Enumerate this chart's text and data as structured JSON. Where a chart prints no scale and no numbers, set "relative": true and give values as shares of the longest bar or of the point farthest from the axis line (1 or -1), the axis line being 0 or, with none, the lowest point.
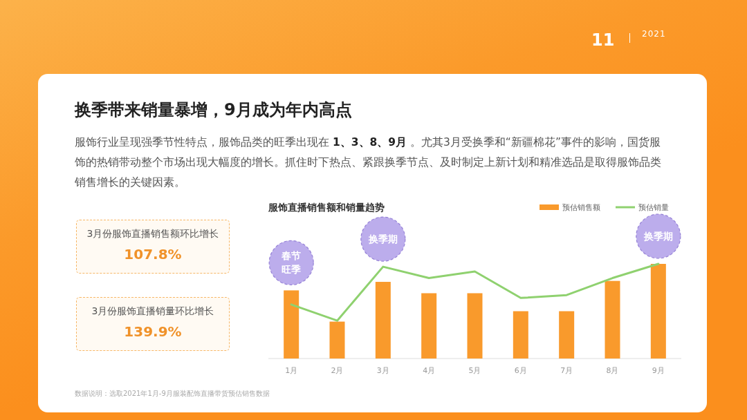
{
  "chart_data": [
    {
      "type": "other",
      "title": "换季带来销量暴增，9月成为年内高点",
      "subtitle": "服饰行业呈现强季节性特点，服饰品类的旺季出现在 **1、3、8、9月** 。尤其3月受换季和“新疆棉花”事件的影响，国货服饰的热销带动整个市场出现大幅度的增长。抓住时下热点、紧跟换季节点、及时制定上新计划和精准选品是取得服饰品类销售增长的关键因素。",
      "annotations": [
        "11",
        "2021",
        "3月份服饰直播销售额环比增长",
        "107.8%",
        "3月份服饰直播销量环比增长",
        "139.9%"
      ]
    },
    {
      "type": "bar",
      "title": "服饰直播销售额和销量趋势",
      "categories": [
        "1月",
        "2月",
        "3月",
        "4月",
        "5月",
        "6月",
        "7月",
        "8月",
        "9月"
      ],
      "relative": true,
      "legend": "top right",
      "series": [
        {
          "name": "预估销售额",
          "color": "#f99a2c",
          "values": [
            0.72,
            0.39,
            0.81,
            0.69,
            0.69,
            0.5,
            0.5,
            0.82,
            1
          ]
        },
        {
          "name": "预估销量",
          "type": "line",
          "color": "#8fd16f",
          "values": [
            0.57,
            0.4,
            0.97,
            0.85,
            0.92,
            0.64,
            0.67,
            0.85,
            1
          ]
        }
      ],
      "annotations": [
        {
          "text": "春节旺季",
          "x": "1月",
          "y": 0.72
        },
        {
          "text": "换季期",
          "x": "3月",
          "y": 0.97
        },
        {
          "text": "换季期",
          "x": "9月",
          "y": 1
        },
        "数据说明：选取2021年1月-9月服装配饰直播带货预估销售数据"
      ]
    }
  ]
}
